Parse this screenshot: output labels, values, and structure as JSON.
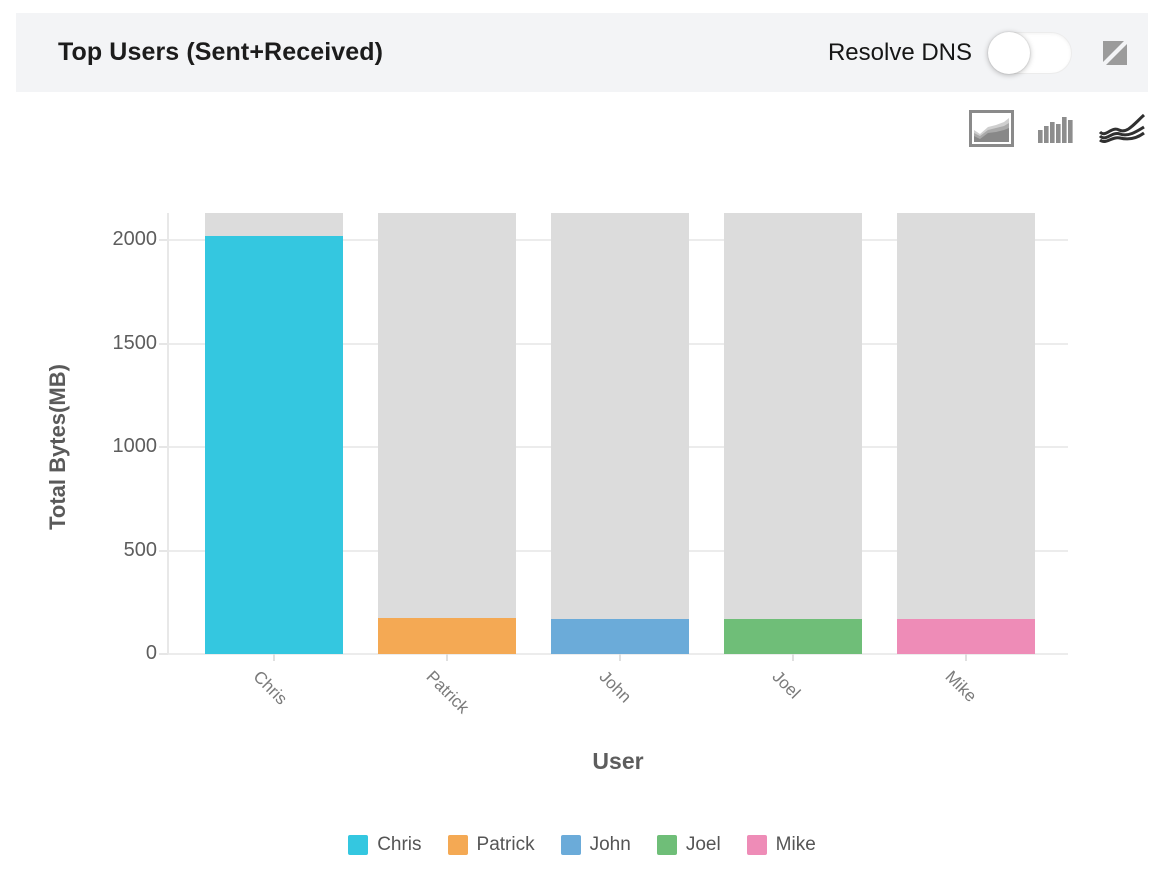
{
  "header": {
    "title": "Top Users (Sent+Received)",
    "resolve_dns_label": "Resolve DNS",
    "resolve_dns_state": "off"
  },
  "toolbar": {
    "chart_types": [
      {
        "name": "area-chart",
        "selected": true
      },
      {
        "name": "bar-chart",
        "selected": false
      },
      {
        "name": "line-chart",
        "selected": false
      }
    ]
  },
  "chart_data": {
    "type": "bar",
    "title": "Top Users (Sent+Received)",
    "xlabel": "User",
    "ylabel": "Total Bytes(MB)",
    "categories": [
      "Chris",
      "Patrick",
      "John",
      "Joel",
      "Mike"
    ],
    "values": [
      2020,
      175,
      170,
      170,
      170
    ],
    "background_bar_total": 2130,
    "yticks": [
      0,
      500,
      1000,
      1500,
      2000
    ],
    "ylim": [
      0,
      2130
    ],
    "grid": "horizontal",
    "colors": [
      "#34c7e0",
      "#f4a954",
      "#6babd9",
      "#6fbe78",
      "#ee8cb7"
    ],
    "background_bar_color": "#dcdcdc",
    "legend": [
      "Chris",
      "Patrick",
      "John",
      "Joel",
      "Mike"
    ],
    "legend_position": "bottom"
  }
}
